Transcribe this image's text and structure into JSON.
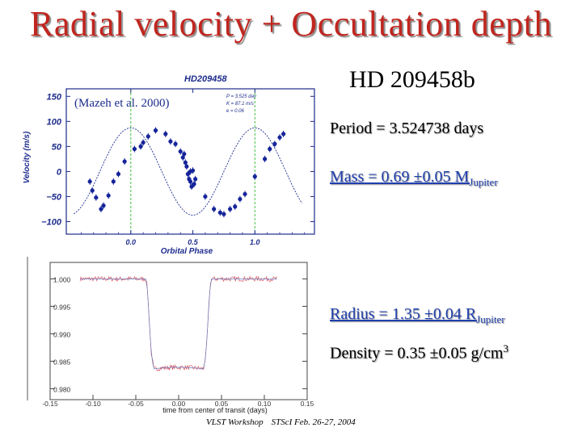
{
  "slide": {
    "title": "Radial velocity + Occultation depth",
    "planet_name": "HD 209458b",
    "period": "Period = 3.524738 days",
    "mass_main": "Mass = 0.69 ±0.05 M",
    "mass_sub": "Jupiter",
    "radius_main": "Radius = 1.35 ±0.04 R",
    "radius_sub": "Jupiter",
    "density_main": "Density = 0.35 ±0.05 g/cm",
    "density_sup": "3",
    "footer_workshop": "VLST Workshop",
    "footer_venue": "STScI Feb. 26-27, 2004"
  },
  "colors": {
    "title": "#c0261f",
    "blue_text": "#1f3fae",
    "rv_axis": "#1d2c8c",
    "rv_points": "#16249a",
    "green_guides": "#3fbf3f",
    "transit_points": "#cc2233"
  },
  "chart_data": [
    {
      "type": "scatter",
      "title": "HD209458",
      "citation": "(Mazeh et al. 2000)",
      "xlabel": "Orbital Phase",
      "ylabel": "Velocity (m/s)",
      "xlim": [
        -0.52,
        1.48
      ],
      "ylim": [
        -125,
        165
      ],
      "xticks": [
        "0.0",
        "0.5",
        "1.0"
      ],
      "yticks": [
        "150",
        "100",
        "50",
        "0",
        "−50",
        "−100"
      ],
      "fit_params": [
        "P = 3.525 day",
        "K = 87.1 m/s",
        "e = 0.06"
      ],
      "model": {
        "K": 87.1,
        "phase_offset": 0.25,
        "vlabel": "fit"
      },
      "vertical_lines_at": [
        0.0,
        1.0
      ],
      "points": [
        {
          "x": -0.33,
          "y": -20
        },
        {
          "x": -0.31,
          "y": -38
        },
        {
          "x": -0.28,
          "y": -52
        },
        {
          "x": -0.24,
          "y": -75
        },
        {
          "x": -0.22,
          "y": -68
        },
        {
          "x": -0.18,
          "y": -48
        },
        {
          "x": -0.14,
          "y": -20
        },
        {
          "x": -0.1,
          "y": -5
        },
        {
          "x": -0.05,
          "y": 20
        },
        {
          "x": 0.03,
          "y": 45
        },
        {
          "x": 0.08,
          "y": 50
        },
        {
          "x": 0.1,
          "y": 58
        },
        {
          "x": 0.14,
          "y": 70
        },
        {
          "x": 0.2,
          "y": 82
        },
        {
          "x": 0.28,
          "y": 75
        },
        {
          "x": 0.32,
          "y": 60
        },
        {
          "x": 0.36,
          "y": 55
        },
        {
          "x": 0.4,
          "y": 40
        },
        {
          "x": 0.42,
          "y": 28
        },
        {
          "x": 0.43,
          "y": 35
        },
        {
          "x": 0.44,
          "y": 18
        },
        {
          "x": 0.45,
          "y": 10
        },
        {
          "x": 0.46,
          "y": -5
        },
        {
          "x": 0.47,
          "y": -15
        },
        {
          "x": 0.48,
          "y": 0
        },
        {
          "x": 0.48,
          "y": -20
        },
        {
          "x": 0.49,
          "y": -30
        },
        {
          "x": 0.5,
          "y": 2
        },
        {
          "x": 0.51,
          "y": -25
        },
        {
          "x": 0.52,
          "y": -15
        },
        {
          "x": 0.6,
          "y": -50
        },
        {
          "x": 0.67,
          "y": -75
        },
        {
          "x": 0.72,
          "y": -82
        },
        {
          "x": 0.75,
          "y": -85
        },
        {
          "x": 0.8,
          "y": -75
        },
        {
          "x": 0.84,
          "y": -70
        },
        {
          "x": 0.88,
          "y": -55
        },
        {
          "x": 0.92,
          "y": -45
        },
        {
          "x": 1.0,
          "y": -10
        },
        {
          "x": 1.08,
          "y": 25
        },
        {
          "x": 1.12,
          "y": 45
        },
        {
          "x": 1.16,
          "y": 55
        },
        {
          "x": 1.2,
          "y": 68
        },
        {
          "x": 1.23,
          "y": 75
        }
      ]
    },
    {
      "type": "scatter",
      "xlabel": "time from center of transit (days)",
      "ylabel": "",
      "xlim": [
        -0.15,
        0.15
      ],
      "ylim": [
        0.978,
        1.003
      ],
      "xticks": [
        "-0.15",
        "-0.10",
        "-0.05",
        "0.00",
        "0.05",
        "0.10",
        "0.15"
      ],
      "yticks": [
        "1.000",
        "0.995",
        "0.990",
        "0.985",
        "0.980"
      ],
      "model": {
        "depth": 0.0164,
        "half_total": 0.0385,
        "half_flat": 0.03
      }
    }
  ]
}
